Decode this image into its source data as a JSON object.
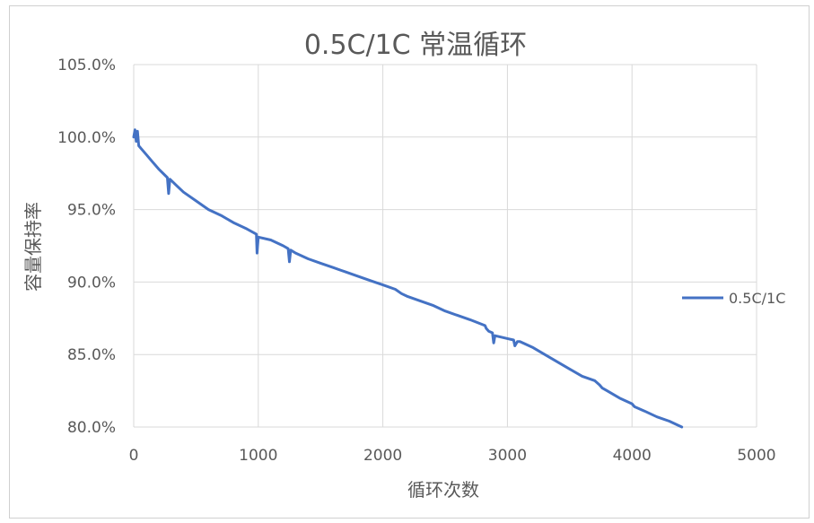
{
  "chart_data": {
    "type": "line",
    "title": "0.5C/1C 常温循环",
    "xlabel": "循环次数",
    "ylabel": "容量保持率",
    "xlim": [
      0,
      5000
    ],
    "ylim": [
      80,
      105
    ],
    "x_ticks": [
      "0",
      "1000",
      "2000",
      "3000",
      "4000",
      "5000"
    ],
    "y_ticks": [
      "80.0%",
      "85.0%",
      "90.0%",
      "95.0%",
      "100.0%",
      "105.0%"
    ],
    "grid": true,
    "legend_position": "right",
    "series": [
      {
        "name": "0.5C/1C",
        "color": "#4472c4",
        "points": [
          [
            0,
            100.0
          ],
          [
            10,
            100.5
          ],
          [
            20,
            99.7
          ],
          [
            30,
            100.4
          ],
          [
            40,
            99.4
          ],
          [
            60,
            99.2
          ],
          [
            100,
            98.8
          ],
          [
            150,
            98.3
          ],
          [
            200,
            97.8
          ],
          [
            270,
            97.2
          ],
          [
            280,
            96.1
          ],
          [
            290,
            97.1
          ],
          [
            350,
            96.6
          ],
          [
            400,
            96.2
          ],
          [
            500,
            95.6
          ],
          [
            600,
            95.0
          ],
          [
            700,
            94.6
          ],
          [
            800,
            94.1
          ],
          [
            900,
            93.7
          ],
          [
            985,
            93.3
          ],
          [
            990,
            92.0
          ],
          [
            1000,
            93.1
          ],
          [
            1100,
            92.9
          ],
          [
            1200,
            92.5
          ],
          [
            1240,
            92.3
          ],
          [
            1250,
            91.4
          ],
          [
            1260,
            92.2
          ],
          [
            1300,
            92.0
          ],
          [
            1400,
            91.6
          ],
          [
            1500,
            91.3
          ],
          [
            1600,
            91.0
          ],
          [
            1700,
            90.7
          ],
          [
            1800,
            90.4
          ],
          [
            1900,
            90.1
          ],
          [
            2000,
            89.8
          ],
          [
            2100,
            89.5
          ],
          [
            2150,
            89.2
          ],
          [
            2200,
            89.0
          ],
          [
            2300,
            88.7
          ],
          [
            2400,
            88.4
          ],
          [
            2500,
            88.0
          ],
          [
            2600,
            87.7
          ],
          [
            2700,
            87.4
          ],
          [
            2820,
            87.0
          ],
          [
            2830,
            86.8
          ],
          [
            2850,
            86.6
          ],
          [
            2880,
            86.5
          ],
          [
            2890,
            85.8
          ],
          [
            2900,
            86.3
          ],
          [
            2950,
            86.2
          ],
          [
            3000,
            86.1
          ],
          [
            3050,
            86.0
          ],
          [
            3060,
            85.6
          ],
          [
            3080,
            85.9
          ],
          [
            3100,
            85.9
          ],
          [
            3200,
            85.5
          ],
          [
            3300,
            85.0
          ],
          [
            3400,
            84.5
          ],
          [
            3500,
            84.0
          ],
          [
            3600,
            83.5
          ],
          [
            3700,
            83.2
          ],
          [
            3740,
            82.9
          ],
          [
            3760,
            82.7
          ],
          [
            3800,
            82.5
          ],
          [
            3900,
            82.0
          ],
          [
            4000,
            81.6
          ],
          [
            4020,
            81.4
          ],
          [
            4100,
            81.1
          ],
          [
            4200,
            80.7
          ],
          [
            4300,
            80.4
          ],
          [
            4400,
            80.0
          ]
        ]
      }
    ]
  }
}
